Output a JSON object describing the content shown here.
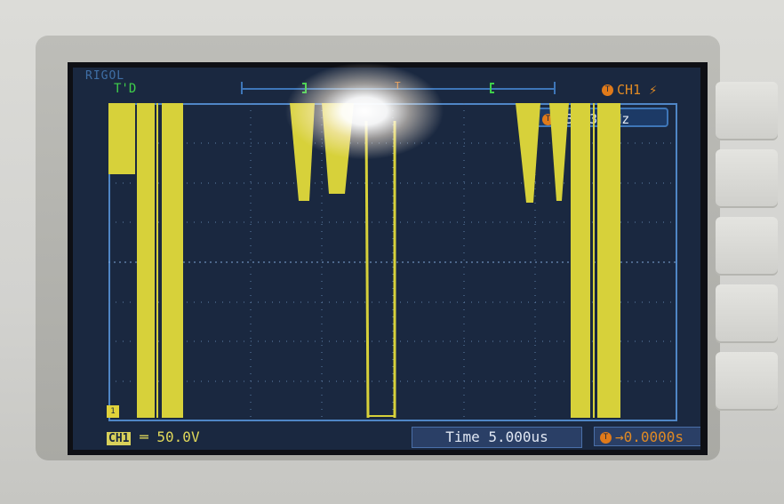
{
  "scope": {
    "brand": "RIGOL",
    "trigger_state": "T'D",
    "channel_label": "CH1",
    "trigger_edge_symbol": "⚡",
    "channel_dot": "T",
    "frequency_readout": "43.634kHz",
    "volts_per_div_channel": "CH1",
    "volts_per_div": "50.0V",
    "timebase": "Time 5.000us",
    "trigger_offset": "→0.0000s",
    "ground_marker": "1"
  },
  "colors": {
    "trace": "#d7d13a",
    "grid": "#4f86c6",
    "screen_bg": "#1a2840",
    "accent": "#e07a1a"
  }
}
